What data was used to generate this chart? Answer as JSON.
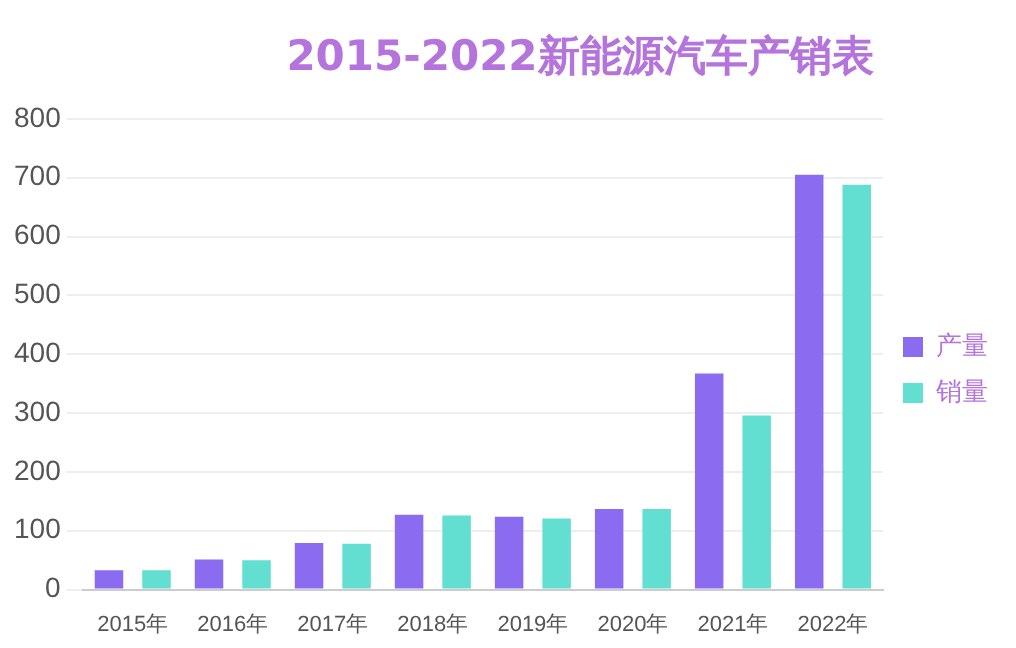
{
  "chart_data": {
    "type": "bar",
    "title": "2015-2022新能源汽车产销表",
    "categories": [
      "2015年",
      "2016年",
      "2017年",
      "2018年",
      "2019年",
      "2020年",
      "2021年",
      "2022年"
    ],
    "series": [
      {
        "name": "产量",
        "color": "#8b6cf0",
        "values": [
          33,
          51,
          79,
          127,
          124,
          137,
          367,
          705
        ]
      },
      {
        "name": "销量",
        "color": "#62dfd0",
        "values": [
          33,
          50,
          78,
          126,
          121,
          137,
          296,
          688
        ]
      }
    ],
    "ylim": [
      0,
      800
    ],
    "yticks": [
      0,
      100,
      200,
      300,
      400,
      500,
      600,
      700,
      800
    ],
    "grid": "y",
    "legend": "right"
  }
}
